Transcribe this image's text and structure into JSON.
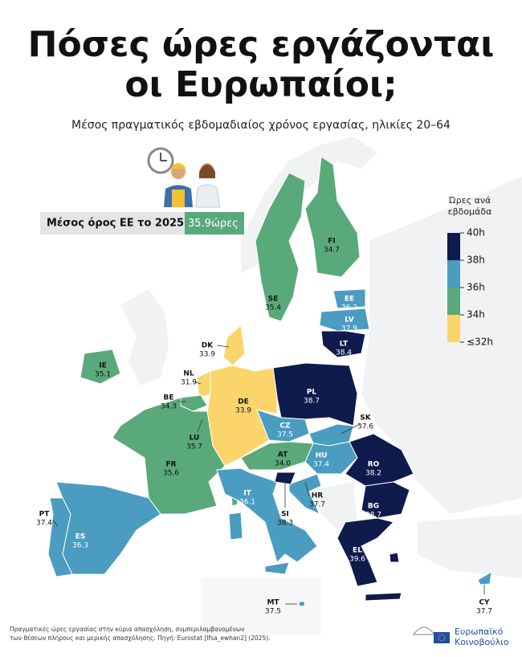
{
  "title": [
    "Πόσες ώρες εργάζονται",
    "οι Ευρωπαίοι;"
  ],
  "subtitle": "Μέσος πραγματικός εβδομαδιαίος χρόνος εργασίας, ηλικίες 20–64",
  "average": {
    "label": "Μέσος όρος ΕΕ το 2025:",
    "value": "35.9",
    "unit": "ώρες",
    "color": "#5aa97a"
  },
  "legend": {
    "title": [
      "Ώρες ανά",
      "εβδομάδα"
    ],
    "labels": [
      "40h",
      "38h",
      "36h",
      "34h",
      "≤32h"
    ],
    "colors": [
      "#0f1a4d",
      "#4a9cc0",
      "#5aa97a",
      "#fbd46b"
    ]
  },
  "countries": [
    {
      "code": "FI",
      "value": "34.7",
      "color": "#5aa97a"
    },
    {
      "code": "SE",
      "value": "35.4",
      "color": "#5aa97a"
    },
    {
      "code": "EE",
      "value": "36.2",
      "color": "#4a9cc0"
    },
    {
      "code": "LV",
      "value": "37.9",
      "color": "#4a9cc0"
    },
    {
      "code": "LT",
      "value": "38.4",
      "color": "#0f1a4d"
    },
    {
      "code": "DK",
      "value": "33.9",
      "color": "#fbd46b"
    },
    {
      "code": "IE",
      "value": "35.1",
      "color": "#5aa97a"
    },
    {
      "code": "NL",
      "value": "31.9",
      "color": "#fbd46b"
    },
    {
      "code": "BE",
      "value": "34.3",
      "color": "#5aa97a"
    },
    {
      "code": "PL",
      "value": "38.7",
      "color": "#0f1a4d"
    },
    {
      "code": "DE",
      "value": "33.9",
      "color": "#fbd46b"
    },
    {
      "code": "SK",
      "value": "37.6",
      "color": "#4a9cc0"
    },
    {
      "code": "CZ",
      "value": "37.5",
      "color": "#4a9cc0"
    },
    {
      "code": "LU",
      "value": "35.7",
      "color": "#5aa97a"
    },
    {
      "code": "HU",
      "value": "37.4",
      "color": "#4a9cc0"
    },
    {
      "code": "AT",
      "value": "34.0",
      "color": "#5aa97a"
    },
    {
      "code": "FR",
      "value": "35.6",
      "color": "#5aa97a"
    },
    {
      "code": "RO",
      "value": "38.2",
      "color": "#0f1a4d"
    },
    {
      "code": "IT",
      "value": "36.1",
      "color": "#4a9cc0"
    },
    {
      "code": "HR",
      "value": "37.7",
      "color": "#4a9cc0"
    },
    {
      "code": "BG",
      "value": "38.7",
      "color": "#0f1a4d"
    },
    {
      "code": "SI",
      "value": "38.3",
      "color": "#0f1a4d"
    },
    {
      "code": "PT",
      "value": "37.4",
      "color": "#4a9cc0"
    },
    {
      "code": "ES",
      "value": "36.3",
      "color": "#4a9cc0"
    },
    {
      "code": "EL",
      "value": "39.6",
      "color": "#0f1a4d"
    },
    {
      "code": "MT",
      "value": "37.5",
      "color": "#4a9cc0"
    },
    {
      "code": "CY",
      "value": "37.7",
      "color": "#4a9cc0"
    }
  ],
  "footnote": [
    "Πραγματικές ώρες εργασίας στην κύρια απασχόληση, συμπεριλαμβανομένων",
    "των θέσεων πλήρους και μερικής απασχόλησης. Πηγή: Eurostat [lfsa_ewhan2] (2025)."
  ],
  "logo": [
    "Ευρωπαϊκό",
    "Κοινοβούλιο"
  ]
}
